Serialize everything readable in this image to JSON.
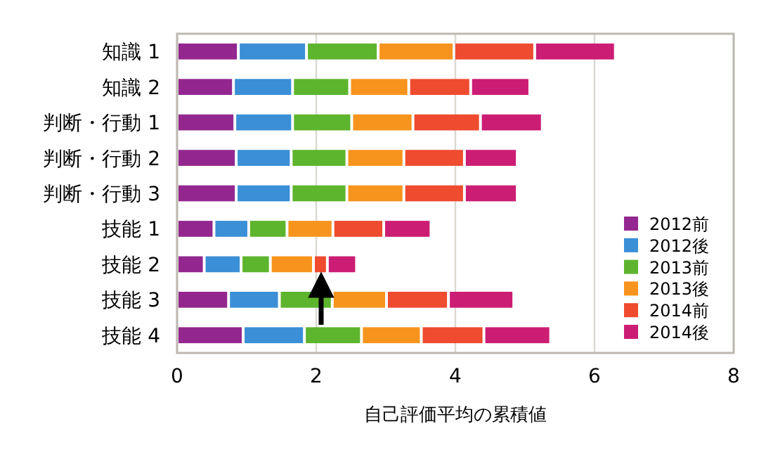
{
  "chart_data": {
    "type": "bar",
    "orientation": "horizontal",
    "stacked": true,
    "xlabel": "自己評価平均の累積値",
    "categories": [
      "知識 1",
      "知識 2",
      "判断・行動 1",
      "判断・行動 2",
      "判断・行動 3",
      "技能 1",
      "技能 2",
      "技能 3",
      "技能 4"
    ],
    "series": [
      {
        "name": "2012前",
        "color": "#93278f",
        "values": [
          0.88,
          0.81,
          0.83,
          0.85,
          0.85,
          0.53,
          0.39,
          0.74,
          0.95
        ]
      },
      {
        "name": "2012後",
        "color": "#3a8fd6",
        "values": [
          0.98,
          0.85,
          0.83,
          0.79,
          0.79,
          0.5,
          0.53,
          0.73,
          0.88
        ]
      },
      {
        "name": "2013前",
        "color": "#5db52d",
        "values": [
          1.03,
          0.82,
          0.85,
          0.8,
          0.8,
          0.55,
          0.42,
          0.76,
          0.82
        ]
      },
      {
        "name": "2013後",
        "color": "#f7941d",
        "values": [
          1.09,
          0.85,
          0.88,
          0.82,
          0.82,
          0.66,
          0.62,
          0.78,
          0.86
        ]
      },
      {
        "name": "2014前",
        "color": "#ee4b2f",
        "values": [
          1.16,
          0.89,
          0.97,
          0.87,
          0.87,
          0.73,
          0.2,
          0.89,
          0.9
        ]
      },
      {
        "name": "2014後",
        "color": "#cc1d74",
        "values": [
          1.16,
          0.85,
          0.89,
          0.76,
          0.76,
          0.68,
          0.42,
          0.94,
          0.96
        ]
      }
    ],
    "xlim": [
      0,
      8
    ],
    "xticks": [
      0,
      2,
      4,
      6,
      8
    ],
    "grid": "x",
    "legend": "right"
  }
}
